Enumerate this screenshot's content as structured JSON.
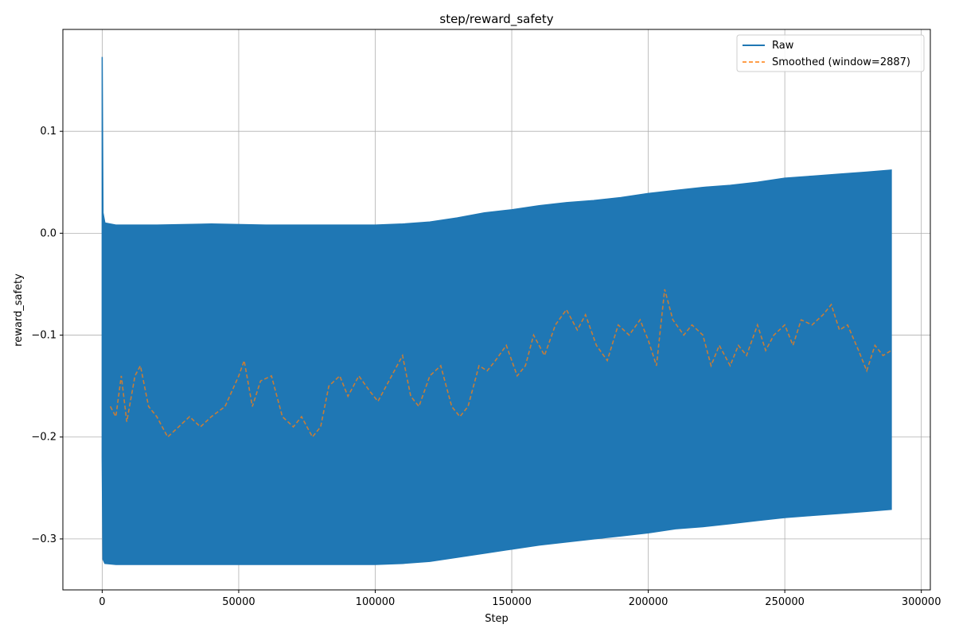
{
  "chart_data": {
    "type": "line",
    "title": "step/reward_safety",
    "xlabel": "Step",
    "ylabel": "reward_safety",
    "xlim": [
      -14400,
      303300
    ],
    "ylim": [
      -0.35,
      0.2
    ],
    "xticks": [
      0,
      50000,
      100000,
      150000,
      200000,
      250000,
      300000
    ],
    "xtick_labels": [
      "0",
      "50000",
      "100000",
      "150000",
      "200000",
      "250000",
      "300000"
    ],
    "yticks": [
      -0.3,
      -0.2,
      -0.1,
      0.0,
      0.1
    ],
    "ytick_labels": [
      "−0.3",
      "−0.2",
      "−0.1",
      "0.0",
      "0.1"
    ],
    "grid": true,
    "legend_position": "top-right",
    "colors": {
      "raw": "#1f77b4",
      "smoothed": "#ff7f0e"
    },
    "series": [
      {
        "name": "Raw",
        "style": "solid-band",
        "x": [
          0,
          300,
          1000,
          5000,
          20000,
          40000,
          60000,
          80000,
          100000,
          110000,
          120000,
          130000,
          140000,
          150000,
          160000,
          170000,
          180000,
          190000,
          200000,
          210000,
          220000,
          230000,
          240000,
          250000,
          260000,
          270000,
          280000,
          289000
        ],
        "upper": [
          0.173,
          0.02,
          0.01,
          0.008,
          0.008,
          0.009,
          0.008,
          0.008,
          0.008,
          0.009,
          0.011,
          0.015,
          0.02,
          0.023,
          0.027,
          0.03,
          0.032,
          0.035,
          0.039,
          0.042,
          0.045,
          0.047,
          0.05,
          0.054,
          0.056,
          0.058,
          0.06,
          0.062
        ],
        "lower": [
          -0.22,
          -0.32,
          -0.324,
          -0.325,
          -0.325,
          -0.325,
          -0.325,
          -0.325,
          -0.325,
          -0.324,
          -0.322,
          -0.318,
          -0.314,
          -0.31,
          -0.306,
          -0.303,
          -0.3,
          -0.297,
          -0.294,
          -0.29,
          -0.288,
          -0.285,
          -0.282,
          -0.279,
          -0.277,
          -0.275,
          -0.273,
          -0.271
        ]
      },
      {
        "name": "Smoothed (window=2887)",
        "style": "dashed",
        "x": [
          3000,
          5000,
          7000,
          9000,
          12000,
          14000,
          17000,
          20000,
          24000,
          28000,
          32000,
          36000,
          40000,
          45000,
          50000,
          52000,
          55000,
          58000,
          62000,
          66000,
          70000,
          73000,
          77000,
          80000,
          83000,
          87000,
          90000,
          94000,
          98000,
          101000,
          105000,
          110000,
          113000,
          116000,
          120000,
          124000,
          128000,
          131000,
          134000,
          138000,
          141000,
          144000,
          148000,
          152000,
          155000,
          158000,
          162000,
          166000,
          170000,
          174000,
          177000,
          181000,
          185000,
          189000,
          193000,
          197000,
          200000,
          203000,
          206000,
          209000,
          213000,
          216000,
          220000,
          223000,
          226000,
          230000,
          233000,
          236000,
          240000,
          243000,
          246000,
          250000,
          253000,
          256000,
          260000,
          264000,
          267000,
          270000,
          273000,
          277000,
          280000,
          283000,
          286000,
          289000
        ],
        "y": [
          -0.17,
          -0.18,
          -0.14,
          -0.185,
          -0.14,
          -0.13,
          -0.17,
          -0.18,
          -0.2,
          -0.19,
          -0.18,
          -0.19,
          -0.18,
          -0.17,
          -0.14,
          -0.125,
          -0.17,
          -0.145,
          -0.14,
          -0.18,
          -0.19,
          -0.18,
          -0.2,
          -0.19,
          -0.15,
          -0.14,
          -0.16,
          -0.14,
          -0.155,
          -0.165,
          -0.145,
          -0.12,
          -0.16,
          -0.17,
          -0.14,
          -0.13,
          -0.17,
          -0.18,
          -0.17,
          -0.13,
          -0.135,
          -0.125,
          -0.11,
          -0.14,
          -0.13,
          -0.1,
          -0.12,
          -0.09,
          -0.075,
          -0.095,
          -0.08,
          -0.11,
          -0.125,
          -0.09,
          -0.1,
          -0.085,
          -0.105,
          -0.13,
          -0.055,
          -0.085,
          -0.1,
          -0.09,
          -0.1,
          -0.13,
          -0.11,
          -0.13,
          -0.11,
          -0.12,
          -0.09,
          -0.115,
          -0.1,
          -0.09,
          -0.11,
          -0.085,
          -0.09,
          -0.08,
          -0.07,
          -0.095,
          -0.09,
          -0.115,
          -0.135,
          -0.11,
          -0.12,
          -0.115
        ]
      }
    ]
  }
}
